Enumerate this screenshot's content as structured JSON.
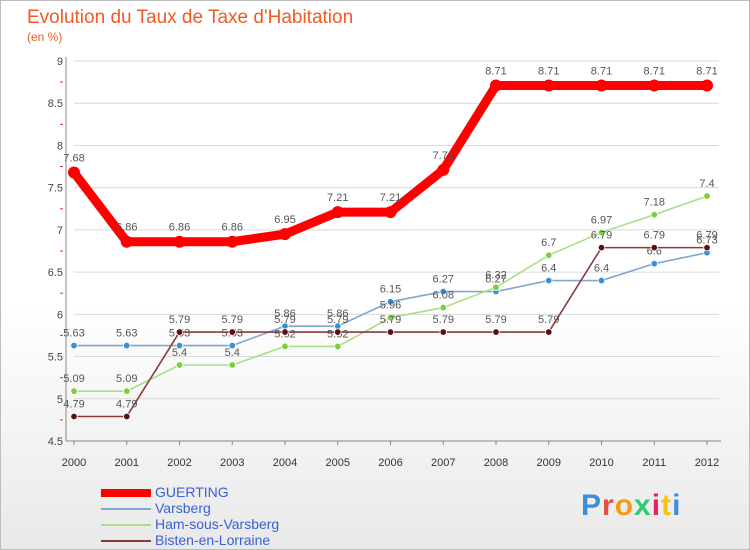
{
  "header": {
    "title": "Evolution du Taux de Taxe d'Habitation",
    "unit": "(en %)"
  },
  "logo": {
    "text": "Proxiti",
    "colors": [
      "#3b8fd4",
      "#e74c3c",
      "#f39c12",
      "#2ecc71",
      "#e91e63",
      "#f1c40f",
      "#3b8fd4"
    ]
  },
  "chart_data": {
    "type": "line",
    "title": "Evolution du Taux de Taxe d'Habitation",
    "ylabel": "(en %)",
    "xlabel": "",
    "categories": [
      "2000",
      "2001",
      "2002",
      "2003",
      "2004",
      "2005",
      "2006",
      "2007",
      "2008",
      "2009",
      "2010",
      "2011",
      "2012"
    ],
    "ylim": [
      4.5,
      9
    ],
    "yticks": [
      "4.5",
      "5",
      "5.5",
      "6",
      "6.5",
      "7",
      "7.5",
      "8",
      "8.5",
      "9"
    ],
    "grid": true,
    "legend_position": "bottom-left",
    "series": [
      {
        "name": "GUERTING",
        "color": "#ff0000",
        "values": [
          7.68,
          6.86,
          6.86,
          6.86,
          6.95,
          7.21,
          7.21,
          7.71,
          8.71,
          8.71,
          8.71,
          8.71,
          8.71
        ],
        "labels": [
          "7.68",
          "6.86",
          "6.86",
          "6.86",
          "6.95",
          "7.21",
          "7.21",
          "7.71",
          "8.71",
          "8.71",
          "8.71",
          "8.71",
          "8.71"
        ]
      },
      {
        "name": "Varsberg",
        "color": "#7fa8d0",
        "marker": "#3b8fd4",
        "values": [
          5.63,
          5.63,
          5.63,
          5.63,
          5.86,
          5.86,
          6.15,
          6.27,
          6.27,
          6.4,
          6.4,
          6.6,
          6.73
        ],
        "labels": [
          "5.63",
          "5.63",
          "5.63",
          "5.63",
          "5.86",
          "5.86",
          "6.15",
          "6.27",
          "6.27",
          "6.4",
          "6.4",
          "6.6",
          "6.73"
        ]
      },
      {
        "name": "Ham-sous-Varsberg",
        "color": "#a8e08a",
        "marker": "#7ccf3a",
        "values": [
          5.09,
          5.09,
          5.4,
          5.4,
          5.62,
          5.62,
          5.96,
          6.08,
          6.32,
          6.7,
          6.97,
          7.18,
          7.4
        ],
        "labels": [
          "5.09",
          "5.09",
          "5.4",
          "5.4",
          "5.62",
          "5.62",
          "5.96",
          "6.08",
          "6.32",
          "6.7",
          "6.97",
          "7.18",
          "7.4"
        ]
      },
      {
        "name": "Bisten-en-Lorraine",
        "color": "#8b3a3a",
        "marker": "#5c1010",
        "values": [
          4.79,
          4.79,
          5.79,
          5.79,
          5.79,
          5.79,
          5.79,
          5.79,
          5.79,
          5.79,
          6.79,
          6.79,
          6.79
        ],
        "labels": [
          "4.79",
          "4.79",
          "5.79",
          "5.79",
          "5.79",
          "5.79",
          "5.79",
          "5.79",
          "5.79",
          "5.79",
          "6.79",
          "6.79",
          "6.79"
        ]
      }
    ]
  }
}
